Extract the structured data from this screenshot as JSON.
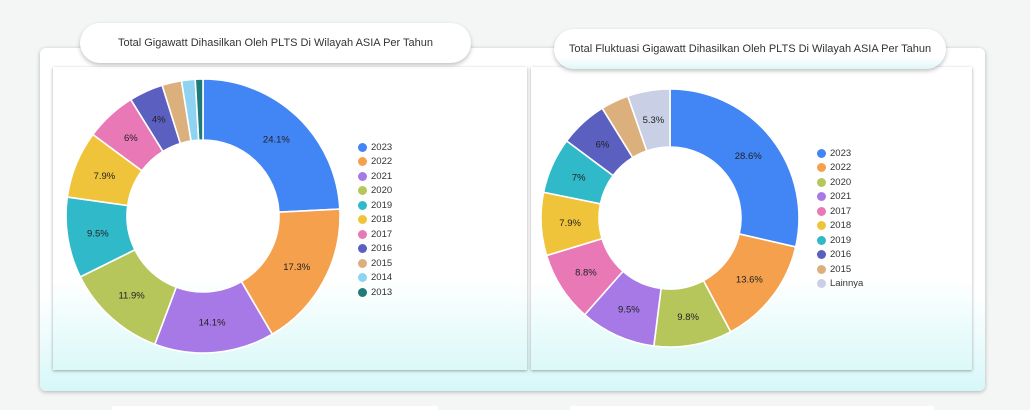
{
  "charts": {
    "left": {
      "title": "Total Gigawatt Dihasilkan Oleh PLTS Di Wilayah ASIA Per Tahun"
    },
    "right": {
      "title": "Total Fluktuasi Gigawatt Dihasilkan Oleh PLTS  Di Wilayah ASIA Per Tahun"
    }
  },
  "chart_data": [
    {
      "type": "pie",
      "title": "Total Gigawatt Dihasilkan Oleh PLTS Di Wilayah ASIA Per Tahun",
      "legend_position": "right",
      "categories": [
        "2023",
        "2022",
        "2021",
        "2020",
        "2019",
        "2018",
        "2017",
        "2016",
        "2015",
        "2014",
        "2013"
      ],
      "values": [
        24.1,
        17.3,
        14.1,
        11.9,
        9.5,
        7.9,
        6,
        4,
        2.3,
        1.6,
        0.9
      ],
      "labels": [
        "24.1%",
        "17.3%",
        "14.1%",
        "11.9%",
        "9.5%",
        "7.9%",
        "6%",
        "4%",
        "",
        "",
        ""
      ],
      "colors": [
        "#4285f4",
        "#f4a04c",
        "#a779e6",
        "#b6c65a",
        "#2fb9c9",
        "#f0c43a",
        "#e878b6",
        "#5b5fbf",
        "#dcb07c",
        "#8fd3f2",
        "#1f7a7a"
      ]
    },
    {
      "type": "pie",
      "title": "Total Fluktuasi Gigawatt Dihasilkan Oleh PLTS  Di Wilayah ASIA Per Tahun",
      "legend_position": "right",
      "categories": [
        "2023",
        "2022",
        "2020",
        "2021",
        "2017",
        "2018",
        "2019",
        "2016",
        "2015",
        "Lainnya"
      ],
      "values": [
        28.6,
        13.6,
        9.8,
        9.5,
        8.8,
        7.9,
        7,
        6,
        3.5,
        5.3
      ],
      "labels": [
        "28.6%",
        "13.6%",
        "9.8%",
        "9.5%",
        "8.8%",
        "7.9%",
        "7%",
        "6%",
        "",
        "5.3%"
      ],
      "colors": [
        "#4285f4",
        "#f4a04c",
        "#b6c65a",
        "#a779e6",
        "#e878b6",
        "#f0c43a",
        "#2fb9c9",
        "#5b5fbf",
        "#dcb07c",
        "#c9d0e6"
      ]
    }
  ]
}
